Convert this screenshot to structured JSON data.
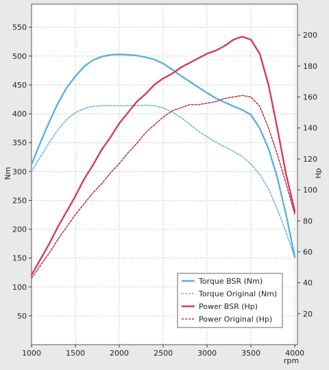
{
  "chart_data": {
    "type": "line",
    "xlabel": "rpm",
    "ylabel_left": "Nm",
    "ylabel_right": "Hp",
    "xlim": [
      1000,
      4030
    ],
    "ylim_left": [
      0,
      590
    ],
    "ylim_right": [
      0,
      220
    ],
    "x_ticks": [
      1000,
      1500,
      2000,
      2500,
      3000,
      3500,
      4000
    ],
    "y_left_ticks": [
      50,
      100,
      150,
      200,
      250,
      300,
      350,
      400,
      450,
      500,
      550
    ],
    "y_right_ticks": [
      20,
      40,
      60,
      80,
      100,
      120,
      140,
      160,
      180,
      200
    ],
    "grid": true,
    "legend_position": "bottom-right",
    "series": [
      {
        "name": "Torque BSR (Nm)",
        "axis": "left",
        "style": "solid",
        "color": "#5ab0e0",
        "x": [
          1000,
          1100,
          1200,
          1300,
          1400,
          1500,
          1600,
          1700,
          1800,
          1900,
          2000,
          2100,
          2200,
          2300,
          2400,
          2500,
          2600,
          2700,
          2800,
          2900,
          3000,
          3100,
          3200,
          3300,
          3400,
          3500,
          3600,
          3700,
          3800,
          3900,
          4000
        ],
        "y": [
          312,
          350,
          385,
          418,
          445,
          465,
          482,
          493,
          499,
          502,
          503,
          502,
          501,
          498,
          494,
          487,
          477,
          466,
          456,
          446,
          436,
          427,
          420,
          413,
          407,
          398,
          375,
          340,
          290,
          225,
          152
        ]
      },
      {
        "name": "Torque Original (Nm)",
        "axis": "left",
        "style": "dashed",
        "color": "#5ab0e0",
        "x": [
          1000,
          1100,
          1200,
          1300,
          1400,
          1500,
          1600,
          1700,
          1800,
          1900,
          2000,
          2100,
          2200,
          2300,
          2400,
          2500,
          2600,
          2700,
          2800,
          2900,
          3000,
          3100,
          3200,
          3300,
          3400,
          3500,
          3600,
          3700,
          3800,
          3900,
          4000
        ],
        "y": [
          300,
          325,
          350,
          372,
          390,
          402,
          409,
          413,
          414,
          414,
          414,
          414,
          414,
          415,
          414,
          410,
          403,
          394,
          382,
          370,
          360,
          351,
          343,
          335,
          326,
          313,
          295,
          270,
          235,
          195,
          150
        ]
      },
      {
        "name": "Power BSR (Hp)",
        "axis": "right",
        "style": "solid",
        "color": "#d83a55",
        "x": [
          1000,
          1100,
          1200,
          1300,
          1400,
          1500,
          1600,
          1700,
          1800,
          1900,
          2000,
          2100,
          2200,
          2300,
          2400,
          2500,
          2600,
          2700,
          2800,
          2900,
          3000,
          3100,
          3200,
          3300,
          3400,
          3500,
          3600,
          3700,
          3800,
          3900,
          4000
        ],
        "y": [
          45,
          55,
          65,
          76,
          86,
          96,
          107,
          116,
          126,
          134,
          143,
          150,
          157,
          162,
          168,
          172,
          175,
          179,
          182,
          185,
          188,
          190,
          193,
          197,
          199,
          197,
          188,
          168,
          140,
          110,
          86
        ]
      },
      {
        "name": "Power Original (Hp)",
        "axis": "right",
        "style": "dashed",
        "color": "#b8203c",
        "x": [
          1000,
          1100,
          1200,
          1300,
          1400,
          1500,
          1600,
          1700,
          1800,
          1900,
          2000,
          2100,
          2200,
          2300,
          2400,
          2500,
          2600,
          2700,
          2800,
          2900,
          3000,
          3100,
          3200,
          3300,
          3400,
          3500,
          3600,
          3700,
          3800,
          3900,
          4000
        ],
        "y": [
          43,
          51,
          59,
          68,
          76,
          84,
          91,
          98,
          104,
          111,
          117,
          124,
          130,
          137,
          142,
          147,
          151,
          153,
          155,
          155,
          156,
          157,
          159,
          160,
          161,
          160,
          154,
          140,
          123,
          104,
          84
        ]
      }
    ]
  }
}
